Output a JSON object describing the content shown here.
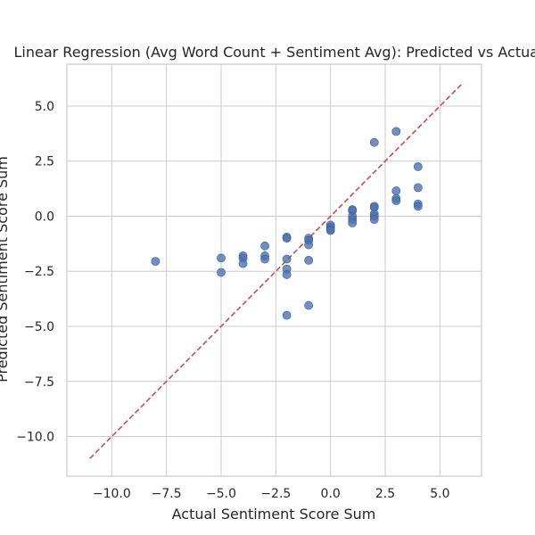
{
  "chart_data": {
    "type": "scatter",
    "title": "Linear Regression (Avg Word Count + Sentiment Avg): Predicted vs Actual",
    "xlabel": "Actual Sentiment Score Sum",
    "ylabel": "Predicted Sentiment Score Sum",
    "xlim": [
      -12.05,
      6.9
    ],
    "ylim": [
      -11.8,
      6.9
    ],
    "xticks": [
      -10.0,
      -7.5,
      -5.0,
      -2.5,
      0.0,
      2.5,
      5.0
    ],
    "xtick_labels": [
      "−10.0",
      "−7.5",
      "−5.0",
      "−2.5",
      "0.0",
      "2.5",
      "5.0"
    ],
    "yticks": [
      -10.0,
      -7.5,
      -5.0,
      -2.5,
      0.0,
      2.5,
      5.0
    ],
    "ytick_labels": [
      "−10.0",
      "−7.5",
      "−5.0",
      "−2.5",
      "0.0",
      "2.5",
      "5.0"
    ],
    "grid": true,
    "point_color": "#4c72b0",
    "reference_line": {
      "x": [
        -11,
        6
      ],
      "y": [
        -11,
        6
      ],
      "color": "#c44e52",
      "style": "dashed"
    },
    "points": [
      {
        "x": -8,
        "y": -2.05
      },
      {
        "x": -5,
        "y": -1.9
      },
      {
        "x": -5,
        "y": -2.55
      },
      {
        "x": -4,
        "y": -1.8
      },
      {
        "x": -4,
        "y": -1.9
      },
      {
        "x": -4,
        "y": -2.15
      },
      {
        "x": -3,
        "y": -1.35
      },
      {
        "x": -3,
        "y": -1.8
      },
      {
        "x": -3,
        "y": -1.95
      },
      {
        "x": -2,
        "y": -0.95
      },
      {
        "x": -2,
        "y": -1.0
      },
      {
        "x": -2,
        "y": -1.95
      },
      {
        "x": -2,
        "y": -2.4
      },
      {
        "x": -2,
        "y": -2.65
      },
      {
        "x": -2,
        "y": -4.5
      },
      {
        "x": -1,
        "y": -1.0
      },
      {
        "x": -1,
        "y": -1.1
      },
      {
        "x": -1,
        "y": -1.3
      },
      {
        "x": -1,
        "y": -2.0
      },
      {
        "x": -1,
        "y": -4.05
      },
      {
        "x": 0,
        "y": -0.4
      },
      {
        "x": 0,
        "y": -0.5
      },
      {
        "x": 0,
        "y": -0.6
      },
      {
        "x": 0,
        "y": -0.65
      },
      {
        "x": 1,
        "y": 0.3
      },
      {
        "x": 1,
        "y": 0.25
      },
      {
        "x": 1,
        "y": 0.0
      },
      {
        "x": 1,
        "y": -0.15
      },
      {
        "x": 1,
        "y": -0.3
      },
      {
        "x": 2,
        "y": 3.35
      },
      {
        "x": 2,
        "y": 0.45
      },
      {
        "x": 2,
        "y": 0.4
      },
      {
        "x": 2,
        "y": 0.1
      },
      {
        "x": 2,
        "y": 0.0
      },
      {
        "x": 2,
        "y": -0.15
      },
      {
        "x": 3,
        "y": 3.85
      },
      {
        "x": 3,
        "y": 1.15
      },
      {
        "x": 3,
        "y": 0.8
      },
      {
        "x": 3,
        "y": 0.7
      },
      {
        "x": 4,
        "y": 2.25
      },
      {
        "x": 4,
        "y": 1.3
      },
      {
        "x": 4,
        "y": 0.55
      },
      {
        "x": 4,
        "y": 0.45
      }
    ]
  }
}
